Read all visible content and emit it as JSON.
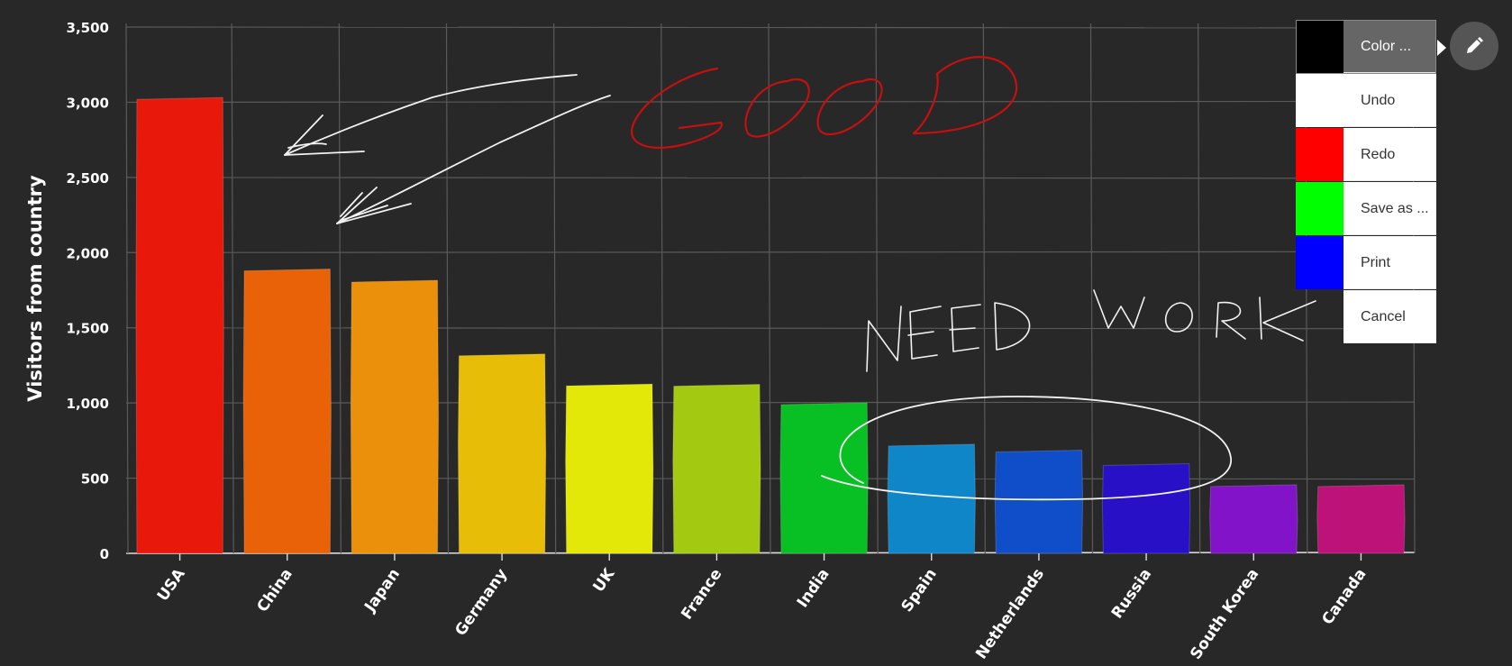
{
  "chart_data": {
    "type": "bar",
    "categories": [
      "USA",
      "China",
      "Japan",
      "Germany",
      "UK",
      "France",
      "India",
      "Spain",
      "Netherlands",
      "Russia",
      "South Korea",
      "Canada"
    ],
    "values": [
      3025,
      1885,
      1810,
      1320,
      1120,
      1118,
      995,
      720,
      680,
      590,
      450,
      450
    ],
    "colors": [
      "#e8180a",
      "#ea6207",
      "#ea900a",
      "#e8bd08",
      "#e4e808",
      "#a3ca10",
      "#08bf24",
      "#0e86c8",
      "#104dc8",
      "#2710c6",
      "#8213c8",
      "#bd1378"
    ],
    "ylabel": "Visitors from country",
    "ylim": [
      0,
      3500
    ],
    "yticks": [
      0,
      500,
      1000,
      1500,
      2000,
      2500,
      3000,
      3500
    ],
    "ytick_labels": [
      "0",
      "500",
      "1,000",
      "1,500",
      "2,000",
      "2,500",
      "3,000",
      "3,500"
    ],
    "grid": true,
    "annotations": [
      {
        "text": "GOOD",
        "color": "#c41010"
      },
      {
        "text": "NEED WORK",
        "color": "#ffffff"
      }
    ]
  },
  "menu": {
    "items": [
      {
        "label": "Color ...",
        "swatch": "#000000",
        "active": true
      },
      {
        "label": "Undo",
        "swatch": "#ffffff"
      },
      {
        "label": "Redo",
        "swatch": "#ff0000"
      },
      {
        "label": "Save as ...",
        "swatch": "#00ff00"
      },
      {
        "label": "Print",
        "swatch": "#0000ff"
      },
      {
        "label": "Cancel",
        "swatch": null
      }
    ],
    "button_icon": "pencil-icon"
  }
}
